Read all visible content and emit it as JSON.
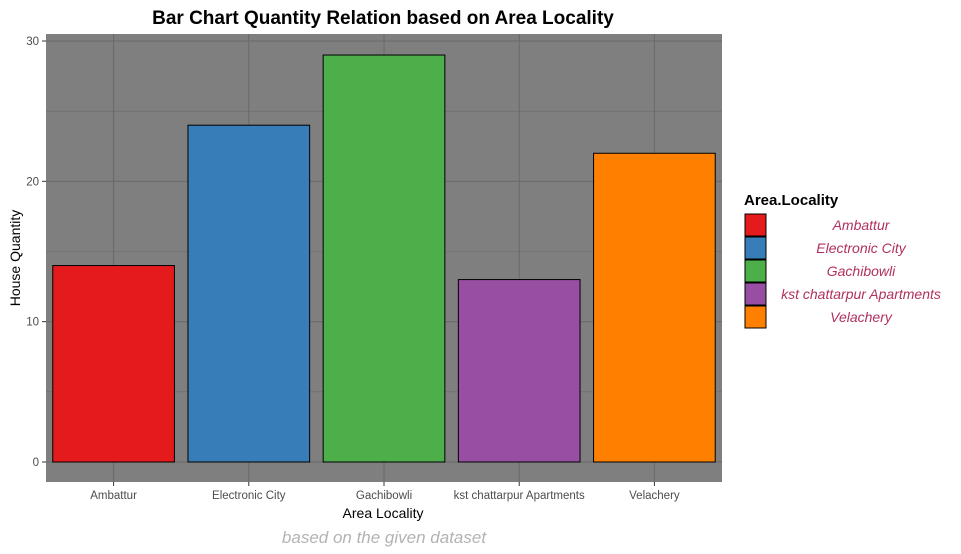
{
  "chart_data": {
    "type": "bar",
    "title": "Bar Chart Quantity Relation based on Area Locality",
    "xlabel": "Area Locality",
    "ylabel": "House Quantity",
    "caption": "based on the given dataset",
    "categories": [
      "Ambattur",
      "Electronic City",
      "Gachibowli",
      "kst chattarpur Apartments",
      "Velachery"
    ],
    "values": [
      14,
      24,
      29,
      13,
      22
    ],
    "ylim": [
      0,
      30
    ],
    "yticks": [
      0,
      10,
      20,
      30
    ],
    "grid": true,
    "legend": {
      "title": "Area.Locality",
      "position": "right",
      "label_color": "#b03060"
    },
    "colors": [
      "#e41a1c",
      "#377eb8",
      "#4daf4a",
      "#984ea3",
      "#ff7f00"
    ],
    "panel_color": "#7f7f7f",
    "grid_color": "#6a6a6a"
  }
}
